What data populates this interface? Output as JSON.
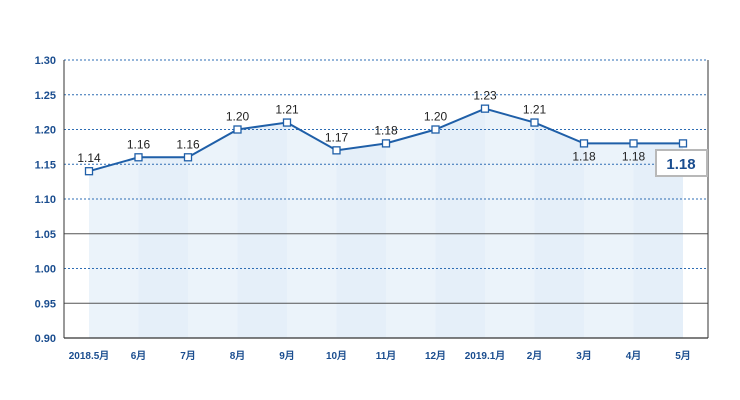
{
  "chart_data": {
    "type": "line",
    "title": "",
    "xlabel": "",
    "ylabel": "",
    "categories": [
      "2018.5月",
      "6月",
      "7月",
      "8月",
      "9月",
      "10月",
      "11月",
      "12月",
      "2019.1月",
      "2月",
      "3月",
      "4月",
      "5月"
    ],
    "series": [
      {
        "values": [
          1.14,
          1.16,
          1.16,
          1.2,
          1.21,
          1.17,
          1.18,
          1.2,
          1.23,
          1.21,
          1.18,
          1.18,
          1.18
        ]
      }
    ],
    "data_labels": [
      "1.14",
      "1.16",
      "1.16",
      "1.20",
      "1.21",
      "1.17",
      "1.18",
      "1.20",
      "1.23",
      "1.21",
      "1.18",
      "1.18"
    ],
    "y_ticks": [
      "1.30",
      "1.25",
      "1.20",
      "1.15",
      "1.10",
      "1.05",
      "1.00",
      "0.95",
      "0.90"
    ],
    "ylim": [
      0.9,
      1.3
    ],
    "grid": true,
    "callout": "1.18",
    "colors": {
      "line": "#1f5fa8",
      "axis_text": "#1a4d8f",
      "fill": "#dce9f7"
    }
  }
}
